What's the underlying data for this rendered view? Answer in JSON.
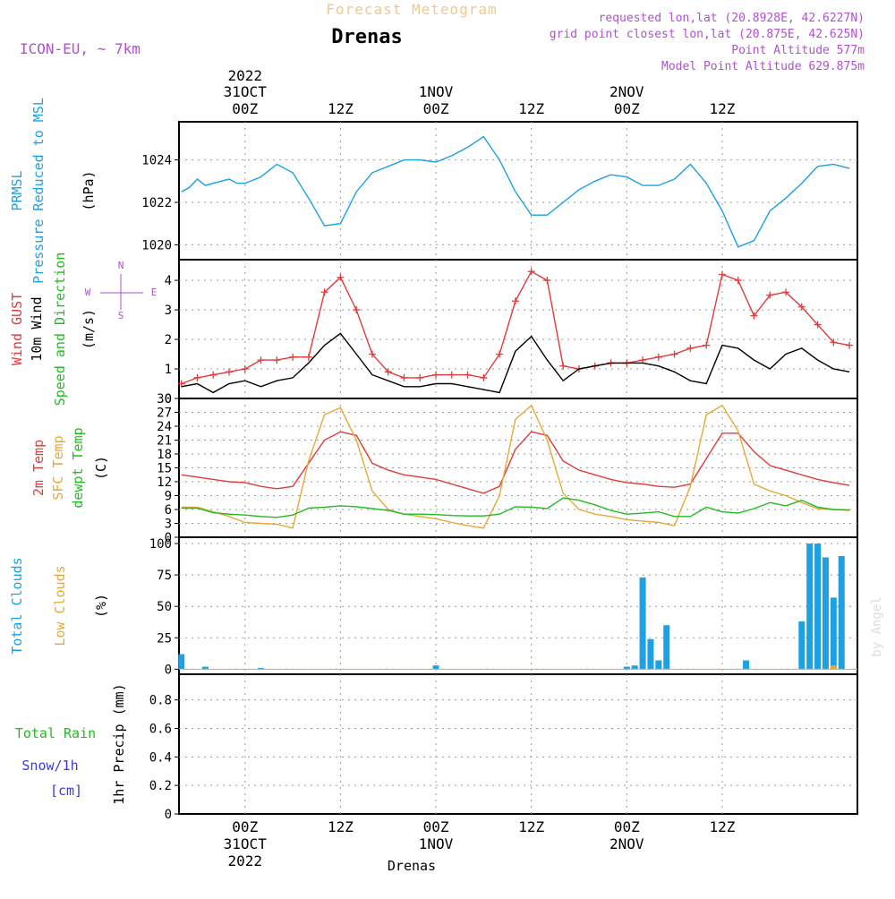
{
  "header": {
    "model": "ICON-EU, ~ 7km",
    "product": "Forecast Meteogram",
    "station": "Drenas",
    "requested": "requested lon,lat (20.8928E, 42.6227N)",
    "grid_point": "grid point closest lon,lat (20.875E, 42.625N)",
    "point_altitude": "Point Altitude 577m",
    "model_altitude": "Model Point Altitude 629.875m",
    "watermark": "by Angel",
    "footer_station": "Drenas"
  },
  "time_axis": {
    "top_year": "2022",
    "bottom_year": "2022",
    "ticks": [
      {
        "h": 0,
        "date": "31OCT",
        "hour": "00Z"
      },
      {
        "h": 12,
        "date": "",
        "hour": "12Z"
      },
      {
        "h": 24,
        "date": "1NOV",
        "hour": "00Z"
      },
      {
        "h": 36,
        "date": "",
        "hour": "12Z"
      },
      {
        "h": 48,
        "date": "2NOV",
        "hour": "00Z"
      },
      {
        "h": 60,
        "date": "",
        "hour": "12Z"
      }
    ]
  },
  "panels": {
    "pressure": {
      "labels": [
        {
          "text": "PRMSL",
          "color": "#1ca0e6"
        },
        {
          "text": "Pressure Reduced to MSL",
          "color": "#1ca0e6"
        },
        {
          "text": "(hPa)",
          "color": "#000000"
        }
      ],
      "yticks": [
        "1020",
        "1022",
        "1024"
      ]
    },
    "wind": {
      "labels": [
        {
          "text": "Wind GUST",
          "color": "#e03c3c"
        },
        {
          "text": "10m Wind",
          "color": "#000000"
        },
        {
          "text": "Speed and Direction",
          "color": "#22bb22"
        },
        {
          "text": "(m/s)",
          "color": "#000000"
        }
      ],
      "compass": {
        "n": "N",
        "s": "S",
        "e": "E",
        "w": "W",
        "color": "#b050d0"
      },
      "yticks": [
        "0",
        "1",
        "2",
        "3",
        "4"
      ]
    },
    "temp": {
      "labels": [
        {
          "text": "2m Temp",
          "color": "#e03c3c"
        },
        {
          "text": "SFC Temp",
          "color": "#e8a838"
        },
        {
          "text": "dewpt Temp",
          "color": "#22bb22"
        },
        {
          "text": "(C)",
          "color": "#000000"
        }
      ],
      "yticks": [
        "0",
        "3",
        "6",
        "9",
        "12",
        "15",
        "18",
        "21",
        "24",
        "27",
        "30"
      ]
    },
    "clouds": {
      "labels": [
        {
          "text": "Total Clouds",
          "color": "#1ca0e6"
        },
        {
          "text": "Low Clouds",
          "color": "#e8a838"
        },
        {
          "text": "(%)",
          "color": "#000000"
        }
      ],
      "yticks": [
        "0",
        "25",
        "50",
        "75",
        "100"
      ]
    },
    "precip": {
      "labels": [
        {
          "text": "Total  Rain",
          "color": "#22bb22"
        },
        {
          "text": "Snow/1h",
          "color": "#3a3ae0"
        },
        {
          "text": "[cm]",
          "color": "#3a3ae0"
        },
        {
          "text": "1hr Precip (mm)",
          "color": "#000000"
        }
      ],
      "yticks": [
        "0",
        "0.2",
        "0.4",
        "0.6",
        "0.8"
      ]
    }
  },
  "colors": {
    "pressure": "#1ca0e6",
    "gust": "#e03c3c",
    "wind": "#000000",
    "temp2m": "#e03c3c",
    "sfc": "#e8a838",
    "dew": "#22bb22",
    "total_clouds": "#1ca0e6",
    "low_clouds": "#e8a838",
    "grid": "#999999",
    "header_purple": "#b050d0",
    "header_orange": "#f0c890"
  },
  "chart_data": [
    {
      "type": "line",
      "title": "PRMSL Pressure Reduced to MSL",
      "ylabel": "hPa",
      "ylim": [
        1019.3,
        1025.8
      ],
      "x_hours": [
        -8,
        -7,
        -6,
        -5,
        -4,
        -3,
        -2,
        -1,
        0,
        2,
        4,
        6,
        8,
        10,
        12,
        14,
        16,
        18,
        20,
        22,
        24,
        26,
        28,
        30,
        32,
        34,
        36,
        38,
        40,
        42,
        44,
        46,
        48,
        50,
        52,
        54,
        56,
        58,
        60,
        62,
        64,
        66,
        68,
        70,
        72,
        74,
        76
      ],
      "series": [
        {
          "name": "PRMSL",
          "values": [
            1022.5,
            1022.7,
            1023.1,
            1022.8,
            1022.9,
            1023.0,
            1023.1,
            1022.9,
            1022.9,
            1023.2,
            1023.8,
            1023.4,
            1022.2,
            1020.9,
            1021.0,
            1022.5,
            1023.4,
            1023.7,
            1024.0,
            1024.0,
            1023.9,
            1024.2,
            1024.6,
            1025.1,
            1024.0,
            1022.5,
            1021.4,
            1021.4,
            1022.0,
            1022.6,
            1023.0,
            1023.3,
            1023.2,
            1022.8,
            1022.8,
            1023.1,
            1023.8,
            1022.9,
            1021.6,
            1019.9,
            1020.2,
            1021.6,
            1022.2,
            1022.9,
            1023.7,
            1023.8,
            1023.6
          ]
        }
      ],
      "grid": true
    },
    {
      "type": "line",
      "title": "Wind GUST / 10m Wind Speed and Direction",
      "ylabel": "m/s",
      "ylim": [
        0,
        4.7
      ],
      "x_hours": [
        -8,
        -6,
        -4,
        -2,
        0,
        2,
        4,
        6,
        8,
        10,
        12,
        14,
        16,
        18,
        20,
        22,
        24,
        26,
        28,
        30,
        32,
        34,
        36,
        38,
        40,
        42,
        44,
        46,
        48,
        50,
        52,
        54,
        56,
        58,
        60,
        62,
        64,
        66,
        68,
        70,
        72,
        74,
        76
      ],
      "series": [
        {
          "name": "Wind GUST",
          "values": [
            0.5,
            0.7,
            0.8,
            0.9,
            1.0,
            1.3,
            1.3,
            1.4,
            1.4,
            3.6,
            4.1,
            3.0,
            1.5,
            0.9,
            0.7,
            0.7,
            0.8,
            0.8,
            0.8,
            0.7,
            1.5,
            3.3,
            4.3,
            4.0,
            1.1,
            1.0,
            1.1,
            1.2,
            1.2,
            1.3,
            1.4,
            1.5,
            1.7,
            1.8,
            4.2,
            4.0,
            2.8,
            3.5,
            3.6,
            3.1,
            2.5,
            1.9,
            1.8
          ]
        },
        {
          "name": "10m Wind",
          "values": [
            0.4,
            0.5,
            0.2,
            0.5,
            0.6,
            0.4,
            0.6,
            0.7,
            1.2,
            1.8,
            2.2,
            1.5,
            0.8,
            0.6,
            0.4,
            0.4,
            0.5,
            0.5,
            0.4,
            0.3,
            0.2,
            1.6,
            2.1,
            1.3,
            0.6,
            1.0,
            1.1,
            1.2,
            1.2,
            1.2,
            1.1,
            0.9,
            0.6,
            0.5,
            1.8,
            1.7,
            1.3,
            1.0,
            1.5,
            1.7,
            1.3,
            1.0,
            0.9
          ]
        }
      ],
      "grid": true
    },
    {
      "type": "line",
      "title": "2m Temp / SFC Temp / dewpt Temp",
      "ylabel": "C",
      "ylim": [
        0,
        30
      ],
      "x_hours": [
        -8,
        -6,
        -4,
        -2,
        0,
        2,
        4,
        6,
        8,
        10,
        12,
        14,
        16,
        18,
        20,
        22,
        24,
        26,
        28,
        30,
        32,
        34,
        36,
        38,
        40,
        42,
        44,
        46,
        48,
        50,
        52,
        54,
        56,
        58,
        60,
        62,
        64,
        66,
        68,
        70,
        72,
        74,
        76
      ],
      "series": [
        {
          "name": "2m Temp",
          "values": [
            13.5,
            13,
            12.5,
            12,
            11.8,
            11,
            10.5,
            11,
            16,
            21,
            22.8,
            22,
            16,
            14.5,
            13.5,
            13,
            12.5,
            11.5,
            10.5,
            9.5,
            11,
            19,
            22.8,
            22,
            16.5,
            14.5,
            13.5,
            12.5,
            11.8,
            11.5,
            11,
            10.8,
            11.5,
            17,
            22.5,
            22.5,
            18.5,
            15.5,
            14.5,
            13.5,
            12.5,
            11.8,
            11.2
          ]
        },
        {
          "name": "SFC Temp",
          "values": [
            6.5,
            6.5,
            5.5,
            4.5,
            3.2,
            3,
            2.8,
            2,
            16.5,
            26.5,
            28,
            21,
            10,
            6,
            5,
            4.5,
            4,
            3.2,
            2.5,
            2,
            9,
            25.5,
            28.5,
            21,
            9.5,
            6,
            5,
            4.5,
            3.8,
            3.5,
            3.2,
            2.5,
            11,
            26.5,
            28.5,
            23,
            11.5,
            10,
            9,
            7.5,
            6.2,
            6,
            5.8
          ]
        },
        {
          "name": "dewpt Temp",
          "values": [
            6.3,
            6.3,
            5.3,
            5,
            4.8,
            4.5,
            4.3,
            4.8,
            6.3,
            6.5,
            6.8,
            6.6,
            6.2,
            5.8,
            5,
            5,
            4.9,
            4.7,
            4.6,
            4.6,
            5,
            6.6,
            6.5,
            6.2,
            8.5,
            8,
            7,
            5.8,
            5,
            5.2,
            5.5,
            4.5,
            4.5,
            6.5,
            5.5,
            5.2,
            6.2,
            7.5,
            6.8,
            8,
            6.5,
            6,
            5.9
          ]
        }
      ],
      "grid": true
    },
    {
      "type": "bar",
      "title": "Total Clouds / Low Clouds",
      "ylabel": "%",
      "ylim": [
        -4,
        105
      ],
      "x_hours": [
        -8,
        -5,
        2,
        24,
        48,
        49,
        50,
        51,
        52,
        53,
        63,
        70,
        71,
        72,
        73,
        74,
        75
      ],
      "series": [
        {
          "name": "Total Clouds",
          "values": [
            12,
            2,
            1,
            3,
            2,
            3,
            73,
            24,
            7,
            35,
            7,
            38,
            100,
            100,
            89,
            57,
            90
          ]
        },
        {
          "name": "Low Clouds",
          "values": [
            0,
            0,
            0,
            0,
            0,
            0,
            0,
            0,
            0,
            0,
            0,
            0,
            0,
            0,
            0,
            3,
            0
          ]
        }
      ],
      "grid": true
    },
    {
      "type": "bar",
      "title": "Total Rain / Snow",
      "ylabel": "1hr Precip (mm)",
      "ylim": [
        0,
        0.98
      ],
      "x_hours": [],
      "series": [
        {
          "name": "Total Rain",
          "values": []
        }
      ],
      "grid": true
    }
  ]
}
